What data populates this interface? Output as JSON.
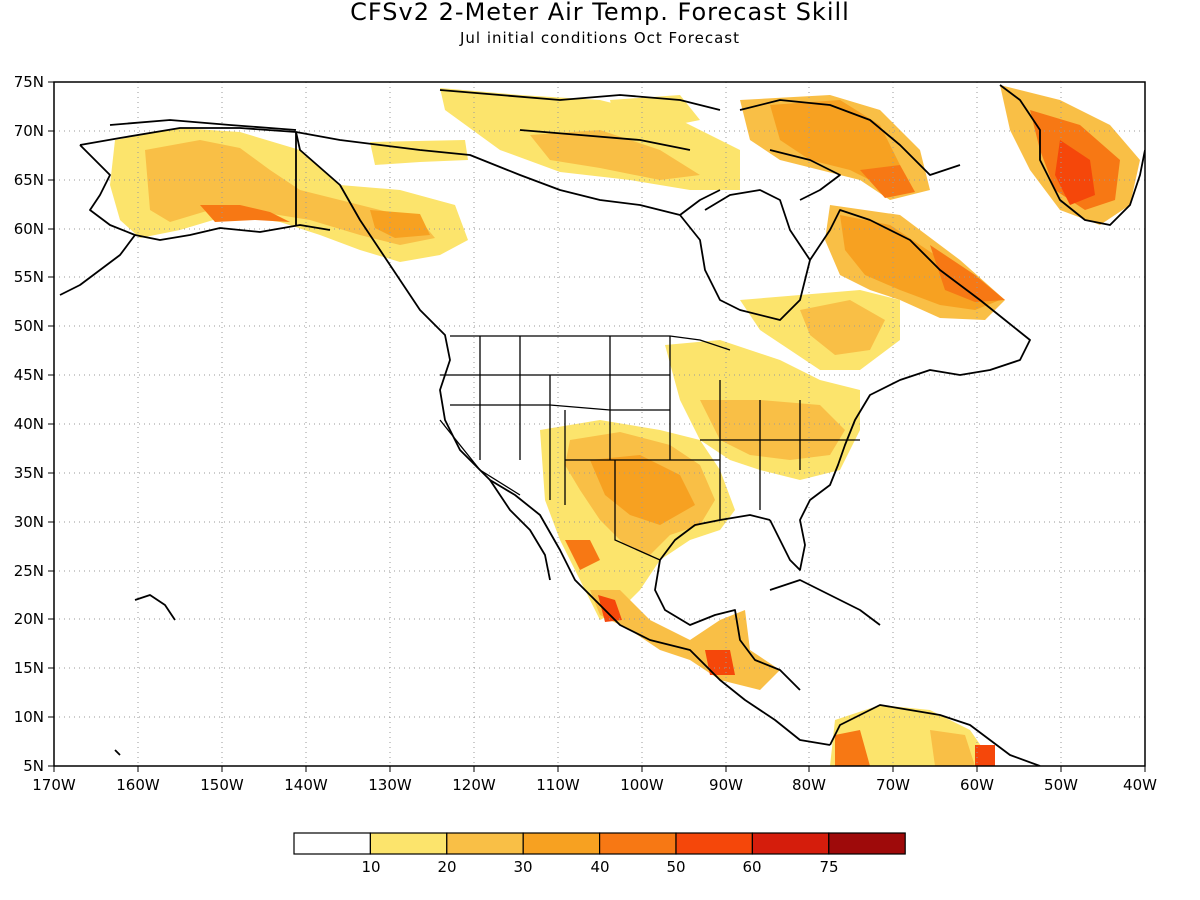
{
  "title": "CFSv2 2-Meter Air Temp. Forecast Skill",
  "subtitle": "Jul initial conditions  Oct Forecast",
  "map": {
    "lat_range": [
      5,
      75
    ],
    "lon_range": [
      -170,
      -40
    ],
    "lat_labels": [
      "75N",
      "70N",
      "65N",
      "60N",
      "55N",
      "50N",
      "45N",
      "40N",
      "35N",
      "30N",
      "25N",
      "20N",
      "15N",
      "10N",
      "5N"
    ],
    "lon_labels": [
      "170W",
      "160W",
      "150W",
      "140W",
      "130W",
      "120W",
      "110W",
      "100W",
      "90W",
      "80W",
      "70W",
      "60W",
      "50W",
      "40W"
    ],
    "grid": "dotted"
  },
  "colorbar": {
    "labels": [
      "10",
      "20",
      "30",
      "40",
      "50",
      "60",
      "75"
    ],
    "colors": [
      "#ffffff",
      "#fce46c",
      "#f9bf46",
      "#f7a121",
      "#f77814",
      "#f5470a",
      "#d51d0c",
      "#9e0a0a"
    ]
  }
}
